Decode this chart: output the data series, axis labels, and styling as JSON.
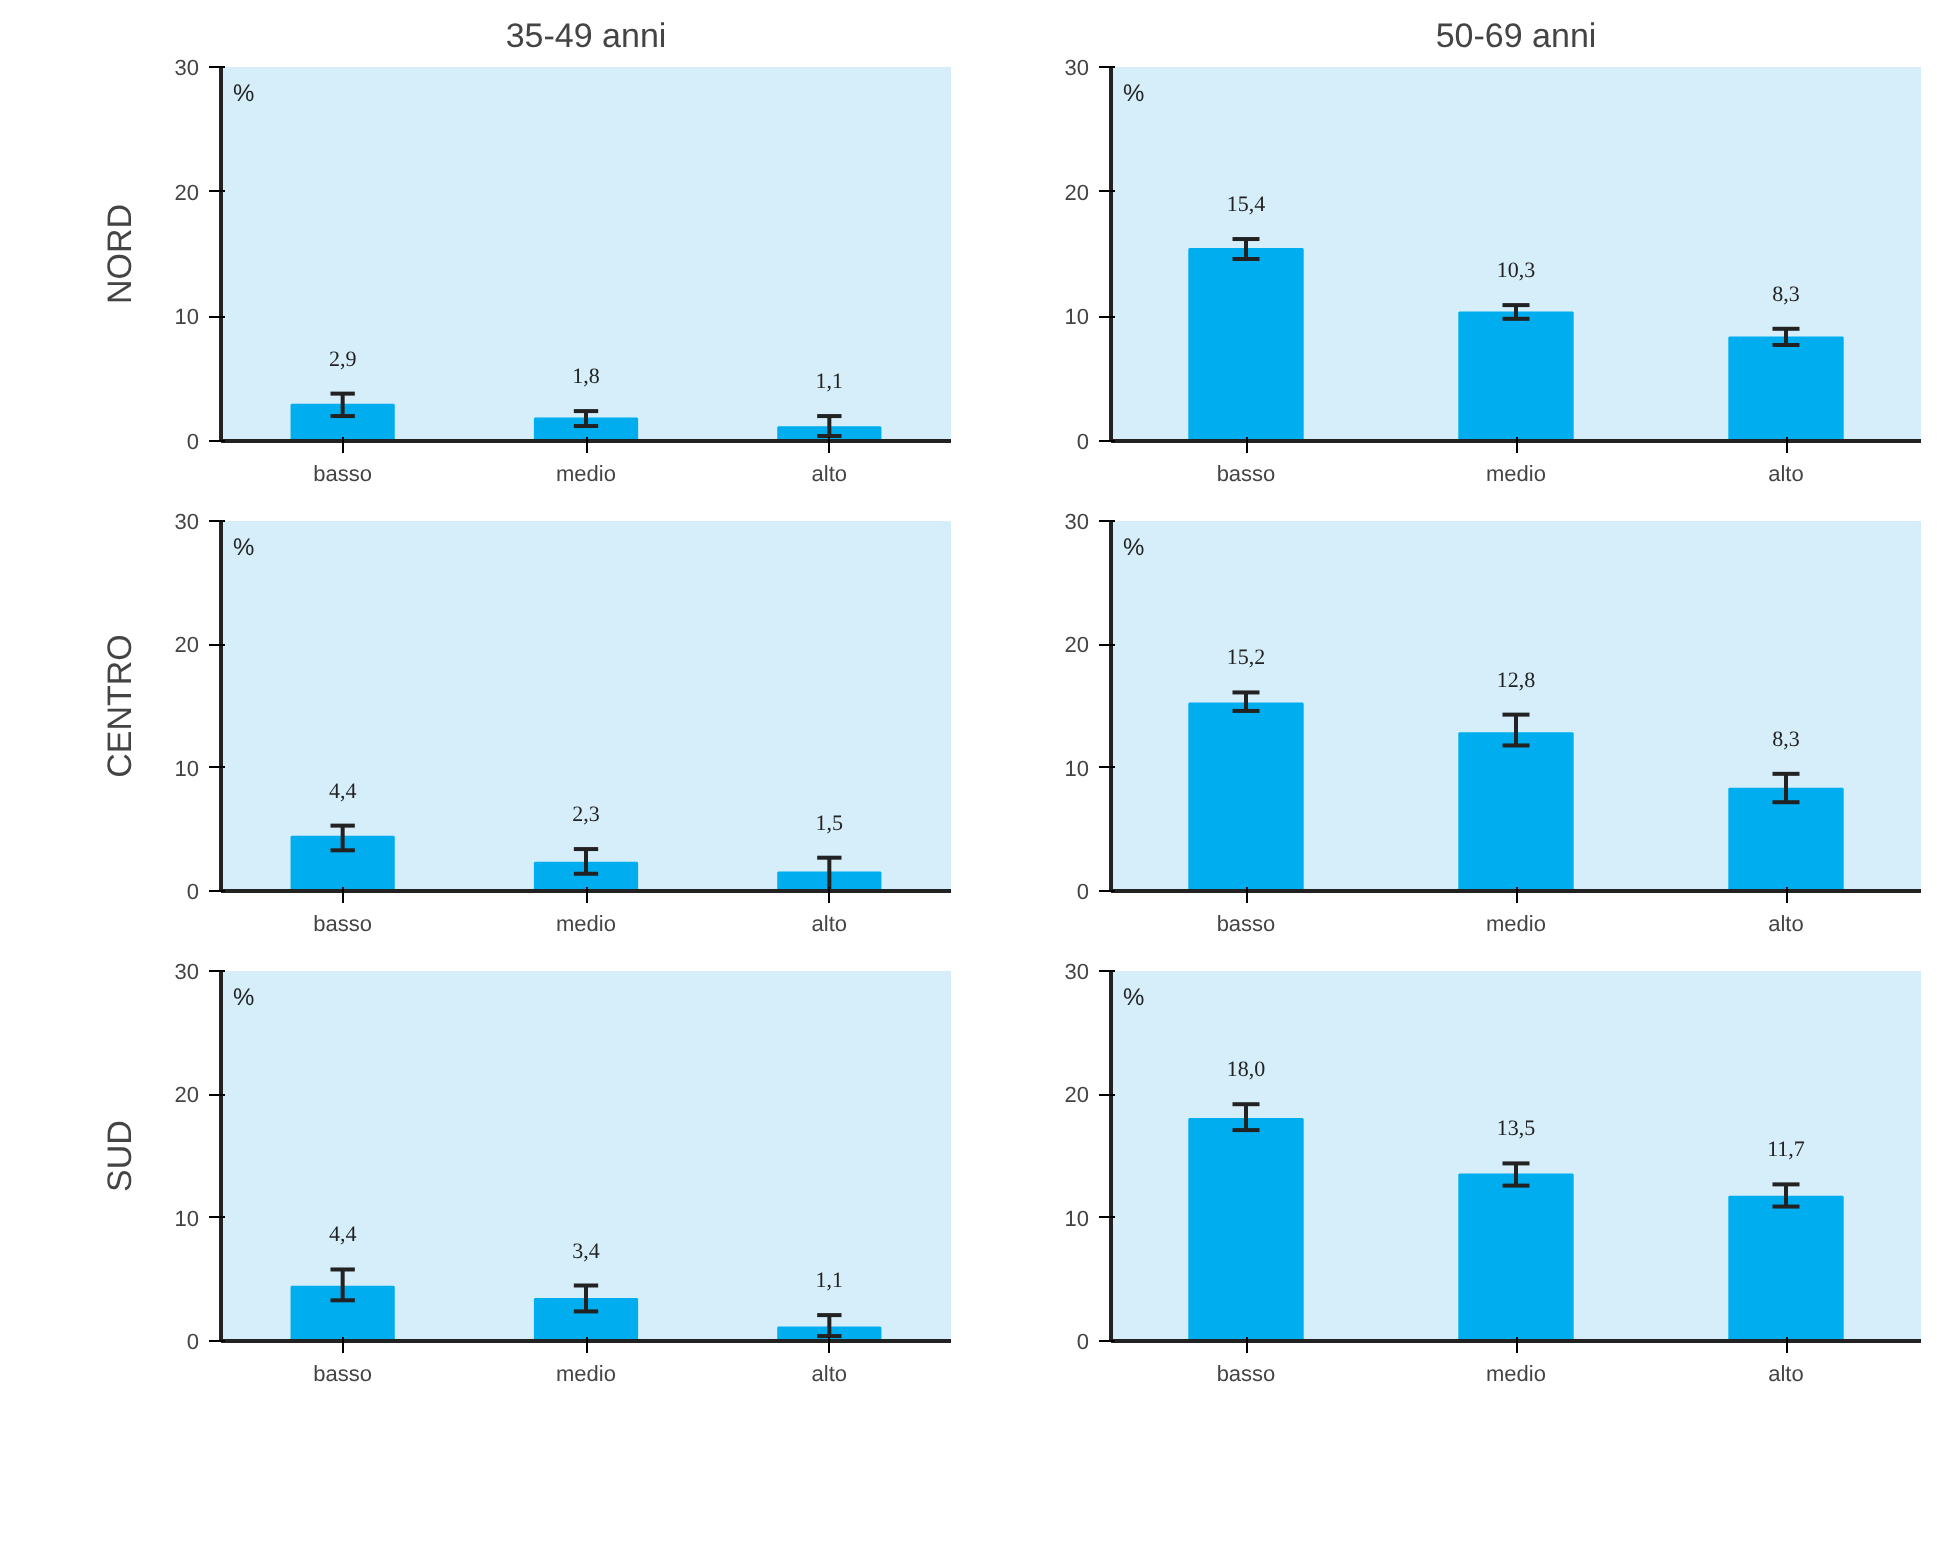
{
  "chart_data": [
    {
      "type": "bar",
      "title": "35-49 anni",
      "annotations": [
        "NORD"
      ],
      "ylabel": "%",
      "categories": [
        "basso",
        "medio",
        "alto"
      ],
      "values": [
        2.9,
        1.8,
        1.1
      ],
      "errors": [
        [
          2.0,
          3.8
        ],
        [
          1.2,
          2.4
        ],
        [
          0.4,
          2.0
        ]
      ],
      "value_labels": [
        "2,9",
        "1,8",
        "1,1"
      ],
      "color": "#00aeef",
      "ylim": [
        0,
        30
      ],
      "yticks": [
        0,
        10,
        20,
        30
      ],
      "grid": false
    },
    {
      "type": "bar",
      "title": "50-69 anni",
      "ylabel": "%",
      "categories": [
        "basso",
        "medio",
        "alto"
      ],
      "values": [
        15.4,
        10.3,
        8.3
      ],
      "errors": [
        [
          14.6,
          16.2
        ],
        [
          9.8,
          10.9
        ],
        [
          7.7,
          9.0
        ]
      ],
      "value_labels": [
        "15,4",
        "10,3",
        "8,3"
      ],
      "color": "#00aeef",
      "ylim": [
        0,
        30
      ],
      "yticks": [
        0,
        10,
        20,
        30
      ],
      "grid": false
    },
    {
      "type": "bar",
      "annotations": [
        "CENTRO"
      ],
      "ylabel": "%",
      "categories": [
        "basso",
        "medio",
        "alto"
      ],
      "values": [
        4.4,
        2.3,
        1.5
      ],
      "errors": [
        [
          3.3,
          5.3
        ],
        [
          1.4,
          3.4
        ],
        [
          0.0,
          2.7
        ]
      ],
      "value_labels": [
        "4,4",
        "2,3",
        "1,5"
      ],
      "color": "#00aeef",
      "ylim": [
        0,
        30
      ],
      "yticks": [
        0,
        10,
        20,
        30
      ],
      "grid": false
    },
    {
      "type": "bar",
      "ylabel": "%",
      "categories": [
        "basso",
        "medio",
        "alto"
      ],
      "values": [
        15.2,
        12.8,
        8.3
      ],
      "errors": [
        [
          14.6,
          16.1
        ],
        [
          11.8,
          14.3
        ],
        [
          7.2,
          9.5
        ]
      ],
      "value_labels": [
        "15,2",
        "12,8",
        "8,3"
      ],
      "color": "#00aeef",
      "ylim": [
        0,
        30
      ],
      "yticks": [
        0,
        10,
        20,
        30
      ],
      "grid": false
    },
    {
      "type": "bar",
      "annotations": [
        "SUD"
      ],
      "ylabel": "%",
      "categories": [
        "basso",
        "medio",
        "alto"
      ],
      "values": [
        4.4,
        3.4,
        1.1
      ],
      "errors": [
        [
          3.3,
          5.8
        ],
        [
          2.4,
          4.5
        ],
        [
          0.4,
          2.1
        ]
      ],
      "value_labels": [
        "4,4",
        "3,4",
        "1,1"
      ],
      "color": "#00aeef",
      "ylim": [
        0,
        30
      ],
      "yticks": [
        0,
        10,
        20,
        30
      ],
      "grid": false
    },
    {
      "type": "bar",
      "ylabel": "%",
      "categories": [
        "basso",
        "medio",
        "alto"
      ],
      "values": [
        18.0,
        13.5,
        11.7
      ],
      "errors": [
        [
          17.1,
          19.2
        ],
        [
          12.6,
          14.4
        ],
        [
          10.9,
          12.7
        ]
      ],
      "value_labels": [
        "18,0",
        "13,5",
        "11,7"
      ],
      "color": "#00aeef",
      "ylim": [
        0,
        30
      ],
      "yticks": [
        0,
        10,
        20,
        30
      ],
      "grid": false
    }
  ]
}
